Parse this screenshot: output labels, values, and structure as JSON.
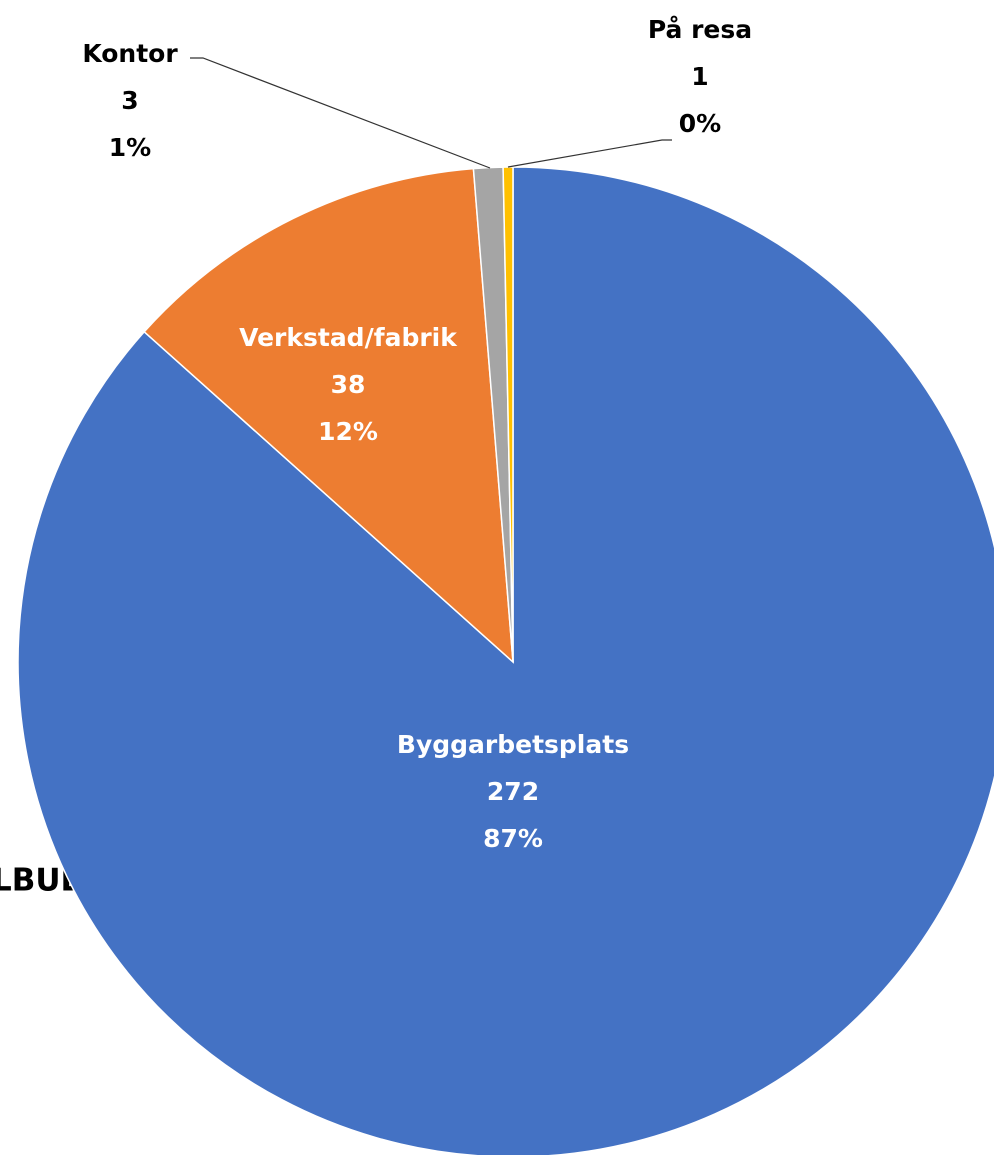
{
  "chart_data": {
    "type": "pie",
    "categories": [
      "Byggarbetsplats",
      "Verkstad/fabrik",
      "Kontor",
      "På resa"
    ],
    "values": [
      272,
      38,
      3,
      1
    ],
    "percent_labels": [
      "87%",
      "12%",
      "1%",
      "0%"
    ],
    "colors": [
      "#4472c4",
      "#ed7d31",
      "#a5a5a5",
      "#ffc000"
    ],
    "annotation": "LBUDET"
  }
}
